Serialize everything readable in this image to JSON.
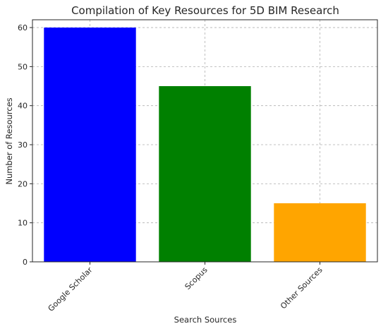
{
  "chart_data": {
    "type": "bar",
    "title": "Compilation of Key Resources for 5D BIM Research",
    "xlabel": "Search Sources",
    "ylabel": "Number of Resources",
    "categories": [
      "Google Scholar",
      "Scopus",
      "Other Sources"
    ],
    "values": [
      60,
      45,
      15
    ],
    "colors": [
      "#0000ff",
      "#008000",
      "#ffa500"
    ],
    "ylim": [
      0,
      62
    ],
    "yticks": [
      0,
      10,
      20,
      30,
      40,
      50,
      60
    ],
    "grid": true,
    "legend": "none"
  }
}
